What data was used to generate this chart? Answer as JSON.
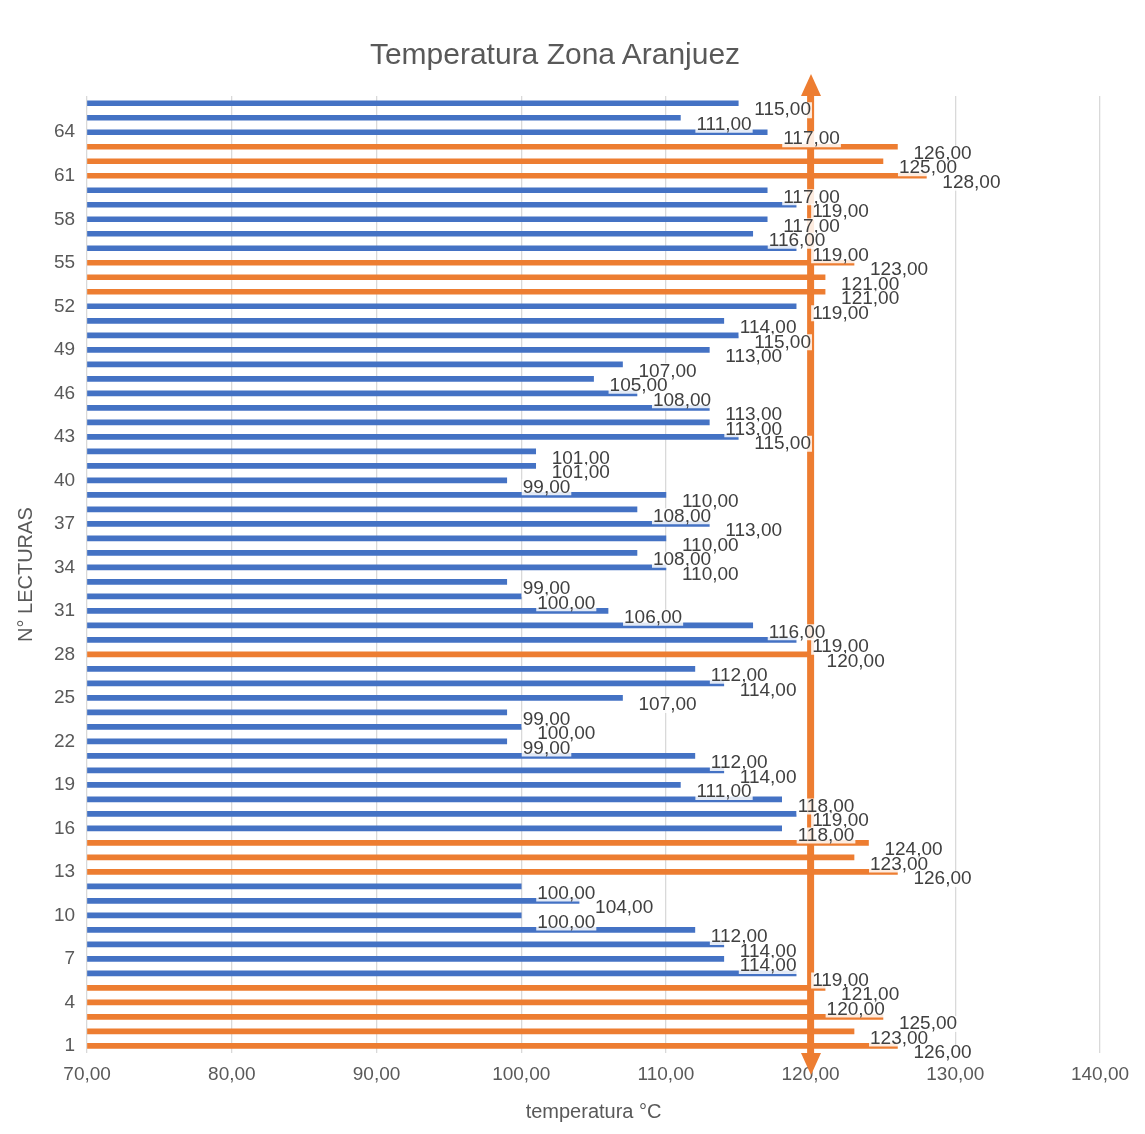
{
  "chart_data": {
    "type": "bar",
    "orientation": "horizontal",
    "title": "Temperatura Zona Aranjuez",
    "xlabel": "temperatura °C",
    "ylabel": "N° LECTURAS",
    "categories": [
      null,
      null,
      "64",
      null,
      null,
      "61",
      null,
      null,
      "58",
      null,
      null,
      "55",
      null,
      null,
      "52",
      null,
      null,
      "49",
      null,
      null,
      "46",
      null,
      null,
      "43",
      null,
      null,
      "40",
      null,
      null,
      "37",
      null,
      null,
      "34",
      null,
      null,
      "31",
      null,
      null,
      "28",
      null,
      null,
      "25",
      null,
      null,
      "22",
      null,
      null,
      "19",
      null,
      null,
      "16",
      null,
      null,
      "13",
      null,
      null,
      "10",
      null,
      null,
      "7",
      null,
      null,
      "4",
      null,
      null,
      "1"
    ],
    "values": [
      115,
      111,
      117,
      126,
      125,
      128,
      117,
      119,
      117,
      116,
      119,
      123,
      121,
      121,
      119,
      114,
      115,
      113,
      107,
      105,
      108,
      113,
      113,
      115,
      101,
      101,
      99,
      110,
      108,
      113,
      110,
      108,
      110,
      99,
      100,
      106,
      116,
      119,
      120,
      112,
      114,
      107,
      99,
      100,
      99,
      112,
      114,
      111,
      118,
      119,
      118,
      124,
      123,
      126,
      100,
      104,
      100,
      112,
      114,
      114,
      119,
      121,
      120,
      125,
      123,
      126
    ],
    "colors": [
      "#4472c4",
      "#4472c4",
      "#4472c4",
      "#ed7d31",
      "#ed7d31",
      "#ed7d31",
      "#4472c4",
      "#4472c4",
      "#4472c4",
      "#4472c4",
      "#4472c4",
      "#ed7d31",
      "#ed7d31",
      "#ed7d31",
      "#4472c4",
      "#4472c4",
      "#4472c4",
      "#4472c4",
      "#4472c4",
      "#4472c4",
      "#4472c4",
      "#4472c4",
      "#4472c4",
      "#4472c4",
      "#4472c4",
      "#4472c4",
      "#4472c4",
      "#4472c4",
      "#4472c4",
      "#4472c4",
      "#4472c4",
      "#4472c4",
      "#4472c4",
      "#4472c4",
      "#4472c4",
      "#4472c4",
      "#4472c4",
      "#4472c4",
      "#ed7d31",
      "#4472c4",
      "#4472c4",
      "#4472c4",
      "#4472c4",
      "#4472c4",
      "#4472c4",
      "#4472c4",
      "#4472c4",
      "#4472c4",
      "#4472c4",
      "#4472c4",
      "#4472c4",
      "#ed7d31",
      "#ed7d31",
      "#ed7d31",
      "#4472c4",
      "#4472c4",
      "#4472c4",
      "#4472c4",
      "#4472c4",
      "#4472c4",
      "#4472c4",
      "#ed7d31",
      "#ed7d31",
      "#ed7d31",
      "#ed7d31",
      "#ed7d31"
    ],
    "value_labels": [
      "115,00",
      "111,00",
      "117,00",
      "126,00",
      "125,00",
      "128,00",
      "117,00",
      "119,00",
      "117,00",
      "116,00",
      "119,00",
      "123,00",
      "121,00",
      "121,00",
      "119,00",
      "114,00",
      "115,00",
      "113,00",
      "107,00",
      "105,00",
      "108,00",
      "113,00",
      "113,00",
      "115,00",
      "101,00",
      "101,00",
      "99,00",
      "110,00",
      "108,00",
      "113,00",
      "110,00",
      "108,00",
      "110,00",
      "99,00",
      "100,00",
      "106,00",
      "116,00",
      "119,00",
      "120,00",
      "112,00",
      "114,00",
      "107,00",
      "99,00",
      "100,00",
      "99,00",
      "112,00",
      "114,00",
      "111,00",
      "118,00",
      "119,00",
      "118,00",
      "124,00",
      "123,00",
      "126,00",
      "100,00",
      "104,00",
      "100,00",
      "112,00",
      "114,00",
      "114,00",
      "119,00",
      "121,00",
      "120,00",
      "125,00",
      "123,00",
      "126,00"
    ],
    "xlim": [
      70,
      140
    ],
    "xticks": [
      {
        "value": 70,
        "label": "70,00"
      },
      {
        "value": 80,
        "label": "80,00"
      },
      {
        "value": 90,
        "label": "90,00"
      },
      {
        "value": 100,
        "label": "100,00"
      },
      {
        "value": 110,
        "label": "110,00"
      },
      {
        "value": 120,
        "label": "120,00"
      },
      {
        "value": 130,
        "label": "130,00"
      },
      {
        "value": 140,
        "label": "140,00"
      }
    ],
    "grid": "x",
    "legend": false,
    "ref_lines": [
      {
        "axis": "x",
        "value": 120,
        "color": "#ed7d31",
        "line_style": "solid"
      }
    ]
  }
}
